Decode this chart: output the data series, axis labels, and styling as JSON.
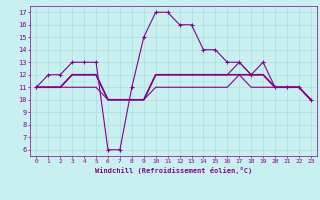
{
  "xlabel": "Windchill (Refroidissement éolien,°C)",
  "background_color": "#c8f0f0",
  "grid_color": "#a8d8d8",
  "line_color": "#880088",
  "xlim": [
    -0.5,
    23.5
  ],
  "ylim": [
    5.5,
    17.5
  ],
  "yticks": [
    6,
    7,
    8,
    9,
    10,
    11,
    12,
    13,
    14,
    15,
    16,
    17
  ],
  "xticks": [
    0,
    1,
    2,
    3,
    4,
    5,
    6,
    7,
    8,
    9,
    10,
    11,
    12,
    13,
    14,
    15,
    16,
    17,
    18,
    19,
    20,
    21,
    22,
    23
  ],
  "series": [
    {
      "x": [
        0,
        1,
        2,
        3,
        4,
        5,
        6,
        7,
        8,
        9,
        10,
        11,
        12,
        13,
        14,
        15,
        16,
        17,
        18,
        19,
        20,
        21,
        22,
        23
      ],
      "y": [
        11,
        12,
        12,
        13,
        13,
        13,
        6,
        6,
        11,
        15,
        17,
        17,
        16,
        16,
        14,
        14,
        13,
        13,
        12,
        13,
        11,
        11,
        11,
        10
      ],
      "color": "#880088",
      "linewidth": 0.8,
      "marker": "+",
      "markersize": 3.5
    },
    {
      "x": [
        0,
        1,
        2,
        3,
        4,
        5,
        6,
        7,
        8,
        9,
        10,
        11,
        12,
        13,
        14,
        15,
        16,
        17,
        18,
        19,
        20,
        21,
        22,
        23
      ],
      "y": [
        11,
        11,
        11,
        12,
        12,
        12,
        10,
        10,
        10,
        10,
        12,
        12,
        12,
        12,
        12,
        12,
        12,
        12,
        12,
        12,
        11,
        11,
        11,
        10
      ],
      "color": "#880088",
      "linewidth": 1.2,
      "marker": null,
      "markersize": 0
    },
    {
      "x": [
        0,
        1,
        2,
        3,
        4,
        5,
        6,
        7,
        8,
        9,
        10,
        11,
        12,
        13,
        14,
        15,
        16,
        17,
        18,
        19,
        20,
        21,
        22,
        23
      ],
      "y": [
        11,
        11,
        11,
        12,
        12,
        12,
        10,
        10,
        10,
        10,
        12,
        12,
        12,
        12,
        12,
        12,
        12,
        13,
        12,
        12,
        11,
        11,
        11,
        10
      ],
      "color": "#880088",
      "linewidth": 0.8,
      "marker": null,
      "markersize": 0
    },
    {
      "x": [
        0,
        1,
        2,
        3,
        4,
        5,
        6,
        7,
        8,
        9,
        10,
        11,
        12,
        13,
        14,
        15,
        16,
        17,
        18,
        19,
        20,
        21,
        22,
        23
      ],
      "y": [
        11,
        11,
        11,
        11,
        11,
        11,
        10,
        10,
        10,
        10,
        11,
        11,
        11,
        11,
        11,
        11,
        11,
        12,
        11,
        11,
        11,
        11,
        11,
        10
      ],
      "color": "#880088",
      "linewidth": 0.8,
      "marker": null,
      "markersize": 0
    }
  ]
}
